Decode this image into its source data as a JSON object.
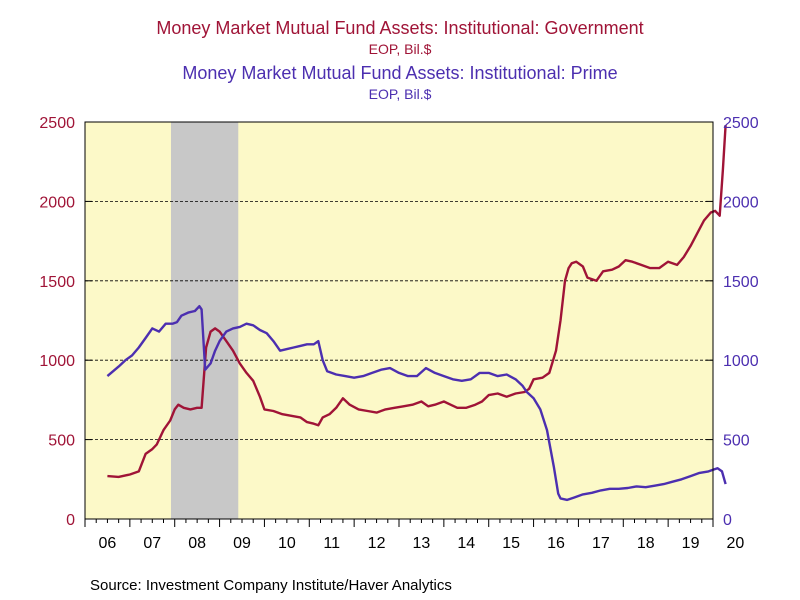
{
  "titles": {
    "gov_title": "Money Market Mutual Fund Assets: Institutional: Government",
    "gov_units": "EOP, Bil.$",
    "prime_title": "Money Market Mutual Fund Assets: Institutional: Prime",
    "prime_units": "EOP, Bil.$"
  },
  "source": "Source:  Investment Company Institute/Haver Analytics",
  "colors": {
    "government": "#a01437",
    "prime": "#4c2fb0",
    "plot_bg": "#fcf9c8",
    "recession": "#c8c8c8"
  },
  "chart_data": {
    "type": "line",
    "xlim": [
      2006.0,
      2020.0
    ],
    "ylim_left": [
      0,
      2500
    ],
    "ylim_right": [
      0,
      2500
    ],
    "x_tick_labels": [
      "06",
      "07",
      "08",
      "09",
      "10",
      "11",
      "12",
      "13",
      "14",
      "15",
      "16",
      "17",
      "18",
      "19",
      "20"
    ],
    "y_ticks": [
      0,
      500,
      1000,
      1500,
      2000,
      2500
    ],
    "grid": "horizontal dashed",
    "recession_shading": [
      2007.917,
      2009.417
    ],
    "series": [
      {
        "key": "government",
        "axis": "left",
        "points": [
          [
            2006.5,
            270
          ],
          [
            2006.75,
            265
          ],
          [
            2007.0,
            280
          ],
          [
            2007.2,
            300
          ],
          [
            2007.35,
            410
          ],
          [
            2007.5,
            440
          ],
          [
            2007.6,
            470
          ],
          [
            2007.75,
            560
          ],
          [
            2007.9,
            620
          ],
          [
            2008.0,
            690
          ],
          [
            2008.08,
            720
          ],
          [
            2008.2,
            700
          ],
          [
            2008.35,
            690
          ],
          [
            2008.5,
            700
          ],
          [
            2008.6,
            700
          ],
          [
            2008.7,
            1080
          ],
          [
            2008.8,
            1180
          ],
          [
            2008.9,
            1200
          ],
          [
            2009.0,
            1180
          ],
          [
            2009.15,
            1120
          ],
          [
            2009.3,
            1060
          ],
          [
            2009.45,
            980
          ],
          [
            2009.6,
            920
          ],
          [
            2009.75,
            870
          ],
          [
            2009.9,
            770
          ],
          [
            2010.0,
            690
          ],
          [
            2010.2,
            680
          ],
          [
            2010.4,
            660
          ],
          [
            2010.6,
            650
          ],
          [
            2010.8,
            640
          ],
          [
            2010.95,
            610
          ],
          [
            2011.1,
            600
          ],
          [
            2011.2,
            590
          ],
          [
            2011.3,
            640
          ],
          [
            2011.45,
            660
          ],
          [
            2011.6,
            700
          ],
          [
            2011.75,
            760
          ],
          [
            2011.9,
            720
          ],
          [
            2012.1,
            690
          ],
          [
            2012.3,
            680
          ],
          [
            2012.5,
            670
          ],
          [
            2012.7,
            690
          ],
          [
            2012.9,
            700
          ],
          [
            2013.1,
            710
          ],
          [
            2013.3,
            720
          ],
          [
            2013.5,
            740
          ],
          [
            2013.65,
            710
          ],
          [
            2013.8,
            720
          ],
          [
            2014.0,
            740
          ],
          [
            2014.15,
            720
          ],
          [
            2014.3,
            700
          ],
          [
            2014.5,
            700
          ],
          [
            2014.7,
            720
          ],
          [
            2014.85,
            740
          ],
          [
            2015.0,
            780
          ],
          [
            2015.2,
            790
          ],
          [
            2015.4,
            770
          ],
          [
            2015.6,
            790
          ],
          [
            2015.8,
            800
          ],
          [
            2015.9,
            820
          ],
          [
            2016.0,
            880
          ],
          [
            2016.2,
            890
          ],
          [
            2016.35,
            920
          ],
          [
            2016.5,
            1060
          ],
          [
            2016.6,
            1250
          ],
          [
            2016.7,
            1500
          ],
          [
            2016.78,
            1580
          ],
          [
            2016.85,
            1610
          ],
          [
            2016.95,
            1620
          ],
          [
            2017.1,
            1590
          ],
          [
            2017.2,
            1520
          ],
          [
            2017.4,
            1500
          ],
          [
            2017.55,
            1560
          ],
          [
            2017.75,
            1570
          ],
          [
            2017.9,
            1590
          ],
          [
            2018.05,
            1630
          ],
          [
            2018.2,
            1620
          ],
          [
            2018.4,
            1600
          ],
          [
            2018.6,
            1580
          ],
          [
            2018.8,
            1580
          ],
          [
            2019.0,
            1620
          ],
          [
            2019.2,
            1600
          ],
          [
            2019.35,
            1650
          ],
          [
            2019.5,
            1720
          ],
          [
            2019.65,
            1800
          ],
          [
            2019.8,
            1880
          ],
          [
            2019.95,
            1930
          ],
          [
            2020.05,
            1940
          ],
          [
            2020.15,
            1910
          ],
          [
            2020.22,
            2200
          ],
          [
            2020.28,
            2480
          ]
        ]
      },
      {
        "key": "prime",
        "axis": "right",
        "points": [
          [
            2006.5,
            900
          ],
          [
            2006.75,
            960
          ],
          [
            2006.9,
            1000
          ],
          [
            2007.05,
            1030
          ],
          [
            2007.2,
            1080
          ],
          [
            2007.35,
            1140
          ],
          [
            2007.5,
            1200
          ],
          [
            2007.65,
            1180
          ],
          [
            2007.8,
            1230
          ],
          [
            2007.95,
            1230
          ],
          [
            2008.05,
            1240
          ],
          [
            2008.15,
            1280
          ],
          [
            2008.3,
            1300
          ],
          [
            2008.45,
            1310
          ],
          [
            2008.55,
            1340
          ],
          [
            2008.6,
            1320
          ],
          [
            2008.68,
            940
          ],
          [
            2008.8,
            980
          ],
          [
            2008.9,
            1060
          ],
          [
            2009.0,
            1120
          ],
          [
            2009.15,
            1180
          ],
          [
            2009.3,
            1200
          ],
          [
            2009.45,
            1210
          ],
          [
            2009.6,
            1230
          ],
          [
            2009.75,
            1220
          ],
          [
            2009.9,
            1190
          ],
          [
            2010.05,
            1170
          ],
          [
            2010.2,
            1120
          ],
          [
            2010.35,
            1060
          ],
          [
            2010.5,
            1070
          ],
          [
            2010.65,
            1080
          ],
          [
            2010.8,
            1090
          ],
          [
            2010.95,
            1100
          ],
          [
            2011.1,
            1100
          ],
          [
            2011.2,
            1120
          ],
          [
            2011.3,
            1000
          ],
          [
            2011.4,
            930
          ],
          [
            2011.6,
            910
          ],
          [
            2011.8,
            900
          ],
          [
            2012.0,
            890
          ],
          [
            2012.2,
            900
          ],
          [
            2012.4,
            920
          ],
          [
            2012.6,
            940
          ],
          [
            2012.8,
            950
          ],
          [
            2013.0,
            920
          ],
          [
            2013.2,
            900
          ],
          [
            2013.4,
            900
          ],
          [
            2013.6,
            950
          ],
          [
            2013.8,
            920
          ],
          [
            2014.0,
            900
          ],
          [
            2014.2,
            880
          ],
          [
            2014.4,
            870
          ],
          [
            2014.6,
            880
          ],
          [
            2014.8,
            920
          ],
          [
            2015.0,
            920
          ],
          [
            2015.2,
            900
          ],
          [
            2015.4,
            910
          ],
          [
            2015.6,
            880
          ],
          [
            2015.75,
            840
          ],
          [
            2015.85,
            800
          ],
          [
            2016.0,
            760
          ],
          [
            2016.15,
            690
          ],
          [
            2016.3,
            560
          ],
          [
            2016.45,
            330
          ],
          [
            2016.55,
            160
          ],
          [
            2016.6,
            130
          ],
          [
            2016.75,
            120
          ],
          [
            2016.9,
            135
          ],
          [
            2017.1,
            155
          ],
          [
            2017.3,
            165
          ],
          [
            2017.5,
            180
          ],
          [
            2017.7,
            190
          ],
          [
            2017.9,
            190
          ],
          [
            2018.1,
            195
          ],
          [
            2018.3,
            205
          ],
          [
            2018.5,
            200
          ],
          [
            2018.7,
            210
          ],
          [
            2018.9,
            220
          ],
          [
            2019.1,
            235
          ],
          [
            2019.3,
            250
          ],
          [
            2019.5,
            270
          ],
          [
            2019.7,
            290
          ],
          [
            2019.9,
            300
          ],
          [
            2020.0,
            310
          ],
          [
            2020.1,
            320
          ],
          [
            2020.2,
            300
          ],
          [
            2020.28,
            220
          ]
        ]
      }
    ]
  }
}
